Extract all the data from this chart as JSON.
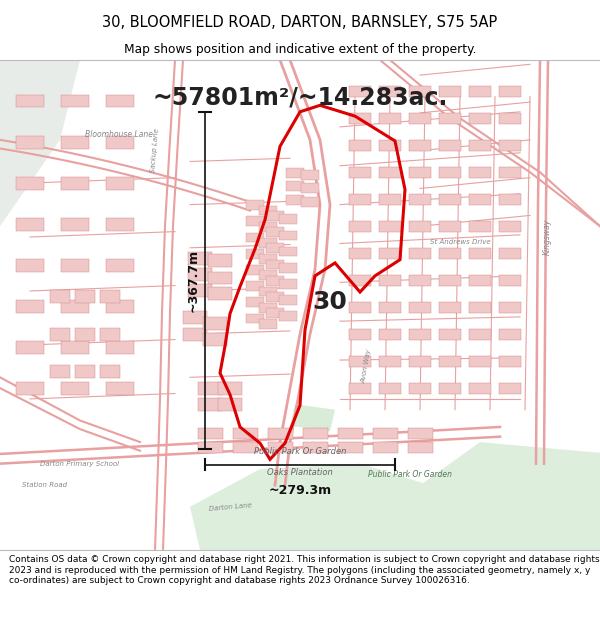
{
  "title_line1": "30, BLOOMFIELD ROAD, DARTON, BARNSLEY, S75 5AP",
  "title_line2": "Map shows position and indicative extent of the property.",
  "area_text": "~57801m²/~14.283ac.",
  "dim1_text": "~367.7m",
  "dim2_text": "~279.3m",
  "label_30": "30",
  "park_label": "Public Park Or Garden",
  "oaks_label": "Oaks Plantation",
  "footer_text": "Contains OS data © Crown copyright and database right 2021. This information is subject to Crown copyright and database rights 2023 and is reproduced with the permission of HM Land Registry. The polygons (including the associated geometry, namely x, y co-ordinates) are subject to Crown copyright and database rights 2023 Ordnance Survey 100026316.",
  "map_bg": "#f8f4f4",
  "header_bg": "#ffffff",
  "footer_bg": "#ffffff",
  "red_poly_color": "#dd0000",
  "street_color": "#e8a0a0",
  "building_color": "#f0c8c8",
  "building_edge": "#d08080",
  "green_color": "#ddeedd",
  "dim_line_color": "#111111",
  "text_color": "#222222",
  "label_color": "#888888"
}
